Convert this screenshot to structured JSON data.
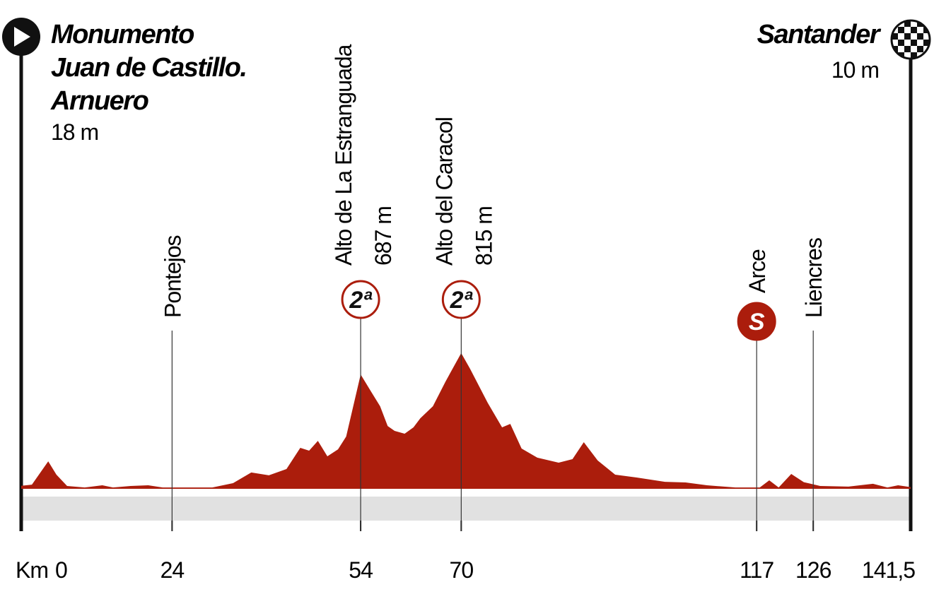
{
  "chart_data": {
    "type": "area",
    "color": "#ab1d0c",
    "start": {
      "name_lines": [
        "Monumento",
        "Juan de Castillo.",
        "Arnuero"
      ],
      "altitude": "18 m"
    },
    "finish": {
      "name": "Santander",
      "altitude": "10 m"
    },
    "x_label": "Km",
    "xlim": [
      0,
      141.5
    ],
    "xticks": [
      0,
      24,
      54,
      70,
      117,
      126,
      {
        "value": 141.5,
        "label": "141,5"
      }
    ],
    "ylim": [
      0,
      2800
    ],
    "x": [
      0,
      1.7,
      4.3,
      5.6,
      7.3,
      10.1,
      12.9,
      14.6,
      17.4,
      20.2,
      22.5,
      25.9,
      30.4,
      33.7,
      36.6,
      39.4,
      42.2,
      44.4,
      45.8,
      47.2,
      48.7,
      50.4,
      51.7,
      54,
      55.7,
      57.1,
      58.3,
      59.4,
      61,
      62.4,
      63.5,
      65.5,
      67.5,
      70,
      71.4,
      74.2,
      76.5,
      77.8,
      79.6,
      82.1,
      85.5,
      87.7,
      89.5,
      91.7,
      94.5,
      97.9,
      102.4,
      105.7,
      109.1,
      113.6,
      117.5,
      119,
      120.5,
      122.5,
      124.5,
      127.1,
      131.6,
      135.5,
      137.8,
      139.5,
      141.5
    ],
    "values": [
      18,
      25,
      165,
      85,
      17,
      8,
      21,
      8,
      17,
      21,
      8,
      8,
      8,
      34,
      98,
      81,
      119,
      246,
      229,
      288,
      195,
      237,
      314,
      687,
      581,
      496,
      377,
      348,
      331,
      369,
      424,
      496,
      644,
      815,
      721,
      517,
      369,
      390,
      242,
      187,
      157,
      178,
      280,
      170,
      85,
      68,
      42,
      38,
      21,
      8,
      8,
      51,
      8,
      89,
      40,
      17,
      13,
      30,
      8,
      21,
      10
    ],
    "waypoints": [
      {
        "name": "Pontejos",
        "km": 24
      },
      {
        "name": "Alto de La Estranguada",
        "altitude": "687 m",
        "km": 54,
        "badge": {
          "text": "2ª",
          "fill": "#ffffff"
        }
      },
      {
        "name": "Alto del Caracol",
        "altitude": "815 m",
        "km": 70,
        "badge": {
          "text": "2ª",
          "fill": "#ffffff"
        }
      },
      {
        "name": "Arce",
        "km": 117,
        "badge": {
          "text": "S",
          "fill": "#ab1d0c"
        }
      },
      {
        "name": "Liencres",
        "km": 126
      }
    ]
  }
}
